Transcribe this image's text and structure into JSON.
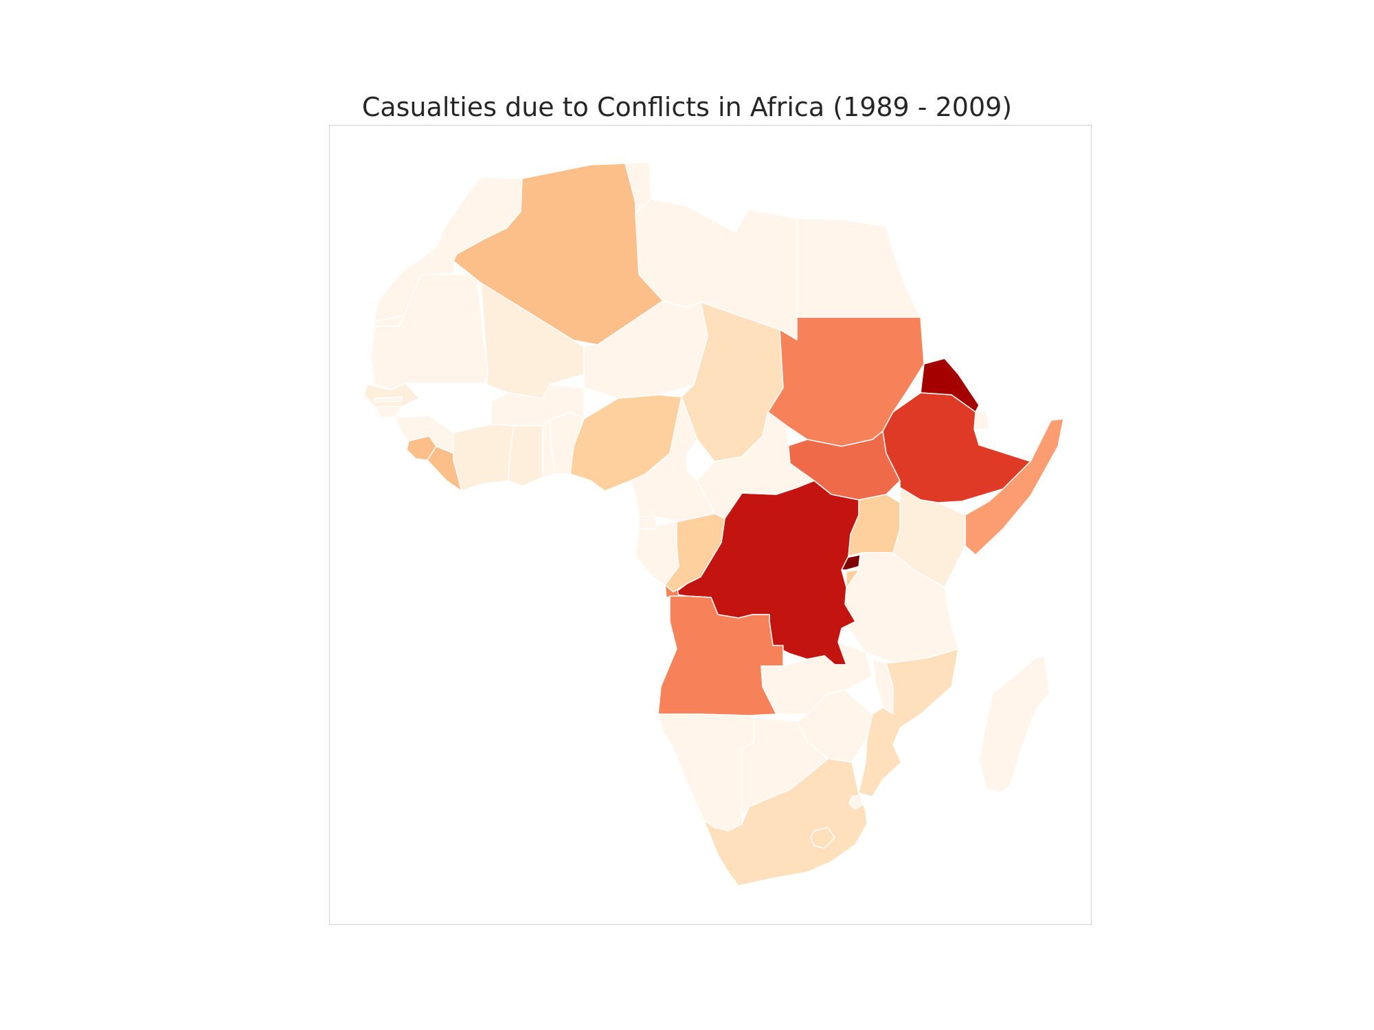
{
  "title": "Casualties due to Conflicts in Africa (1989 - 2009)",
  "colors": {
    "level_0": "#fff5eb",
    "level_1": "#feeedc",
    "level_2": "#fee0bd",
    "level_3": "#fdd09d",
    "level_4": "#fcbf89",
    "level_5": "#fc9d71",
    "level_6": "#f78158",
    "level_7": "#ef6a49",
    "level_8": "#de3a26",
    "level_9": "#c3140f",
    "level_10": "#a50000",
    "level_11": "#7f0000"
  },
  "chart_data": {
    "type": "choropleth",
    "title": "Casualties due to Conflicts in Africa (1989 - 2009)",
    "colormap": "OrRd",
    "legend": "none",
    "regions": [
      {
        "name": "Morocco",
        "level": 0
      },
      {
        "name": "Western Sahara",
        "level": 0
      },
      {
        "name": "Mauritania",
        "level": 0
      },
      {
        "name": "Algeria",
        "level": 4
      },
      {
        "name": "Tunisia",
        "level": 0
      },
      {
        "name": "Libya",
        "level": 0
      },
      {
        "name": "Egypt",
        "level": 0
      },
      {
        "name": "Mali",
        "level": 1
      },
      {
        "name": "Niger",
        "level": 0
      },
      {
        "name": "Chad",
        "level": 2
      },
      {
        "name": "Sudan",
        "level": 6
      },
      {
        "name": "South Sudan",
        "level": 7
      },
      {
        "name": "Eritrea",
        "level": 10
      },
      {
        "name": "Djibouti",
        "level": 0
      },
      {
        "name": "Ethiopia",
        "level": 8
      },
      {
        "name": "Somalia",
        "level": 5
      },
      {
        "name": "Kenya",
        "level": 1
      },
      {
        "name": "Uganda",
        "level": 3
      },
      {
        "name": "Rwanda",
        "level": 11
      },
      {
        "name": "Burundi",
        "level": 3
      },
      {
        "name": "Tanzania",
        "level": 0
      },
      {
        "name": "Democratic Republic of the Congo",
        "level": 9
      },
      {
        "name": "Republic of the Congo",
        "level": 3
      },
      {
        "name": "Gabon",
        "level": 0
      },
      {
        "name": "Equatorial Guinea",
        "level": 0
      },
      {
        "name": "Cameroon",
        "level": 0
      },
      {
        "name": "Central African Republic",
        "level": 0
      },
      {
        "name": "Nigeria",
        "level": 3
      },
      {
        "name": "Benin",
        "level": 0
      },
      {
        "name": "Togo",
        "level": 0
      },
      {
        "name": "Ghana",
        "level": 1
      },
      {
        "name": "Burkina Faso",
        "level": 0
      },
      {
        "name": "Ivory Coast",
        "level": 1
      },
      {
        "name": "Liberia",
        "level": 4
      },
      {
        "name": "Sierra Leone",
        "level": 4
      },
      {
        "name": "Guinea",
        "level": 0
      },
      {
        "name": "Guinea-Bissau",
        "level": 0
      },
      {
        "name": "Senegal",
        "level": 1
      },
      {
        "name": "Gambia",
        "level": 0
      },
      {
        "name": "Angola",
        "level": 6
      },
      {
        "name": "Zambia",
        "level": 0
      },
      {
        "name": "Malawi",
        "level": 0
      },
      {
        "name": "Mozambique",
        "level": 2
      },
      {
        "name": "Zimbabwe",
        "level": 0
      },
      {
        "name": "Namibia",
        "level": 0
      },
      {
        "name": "Botswana",
        "level": 0
      },
      {
        "name": "South Africa",
        "level": 2
      },
      {
        "name": "Lesotho",
        "level": 2
      },
      {
        "name": "Swaziland",
        "level": 0
      },
      {
        "name": "Madagascar",
        "level": 0
      }
    ]
  }
}
